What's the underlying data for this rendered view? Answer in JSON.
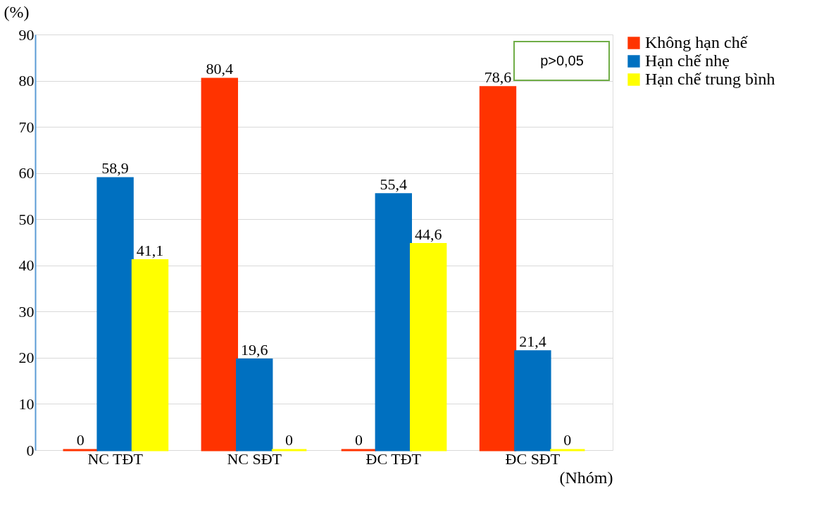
{
  "chart_data": {
    "type": "bar",
    "ylabel": "(%)",
    "xlabel": "(Nhóm)",
    "categories": [
      "NC TĐT",
      "NC SĐT",
      "ĐC TĐT",
      "ĐC SĐT"
    ],
    "series": [
      {
        "name": "Không hạn chế",
        "color": "#ff3300",
        "values": [
          0,
          80.4,
          0,
          78.6
        ],
        "value_labels": [
          "0",
          "80,4",
          "0",
          "78,6"
        ]
      },
      {
        "name": "Hạn chế nhẹ",
        "color": "#0070c0",
        "values": [
          58.9,
          19.6,
          55.4,
          21.4
        ],
        "value_labels": [
          "58,9",
          "19,6",
          "55,4",
          "21,4"
        ]
      },
      {
        "name": "Hạn chế trung bình",
        "color": "#ffff00",
        "values": [
          41.1,
          0,
          44.6,
          0
        ],
        "value_labels": [
          "41,1",
          "0",
          "44,6",
          "0"
        ]
      }
    ],
    "ylim": [
      0,
      90
    ],
    "yticks": [
      0,
      10,
      20,
      30,
      40,
      50,
      60,
      70,
      80,
      90
    ],
    "grid": "y",
    "legend": "right",
    "annotations": [
      "p>0,05"
    ]
  }
}
